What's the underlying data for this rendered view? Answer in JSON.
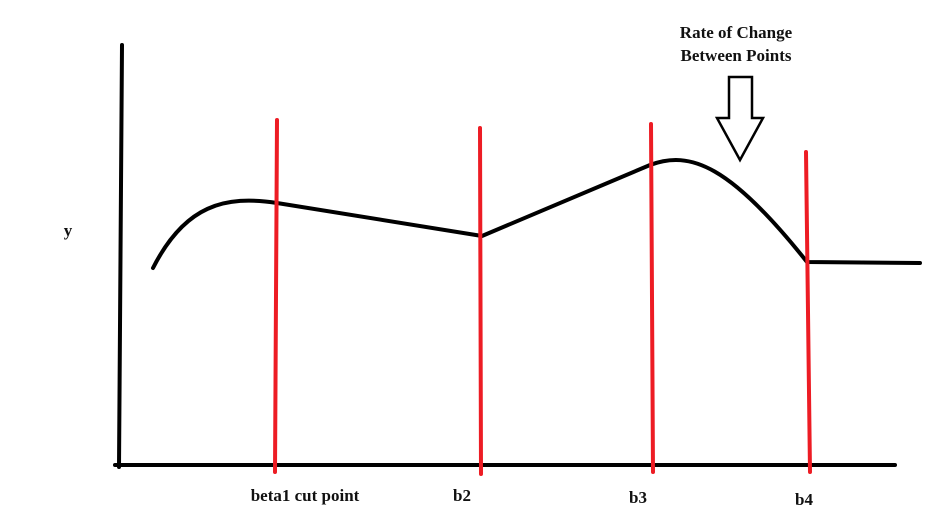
{
  "y_axis_label": "y",
  "annotation": {
    "line1": "Rate of Change",
    "line2": "Between Points"
  },
  "cut_points": [
    {
      "label": "beta1 cut point"
    },
    {
      "label": "b2"
    },
    {
      "label": "b3"
    },
    {
      "label": "b4"
    }
  ],
  "colors": {
    "axes": "#000000",
    "curve": "#000000",
    "cut_lines": "#ed1c24",
    "arrow_fill": "#ffffff",
    "arrow_stroke": "#000000"
  }
}
